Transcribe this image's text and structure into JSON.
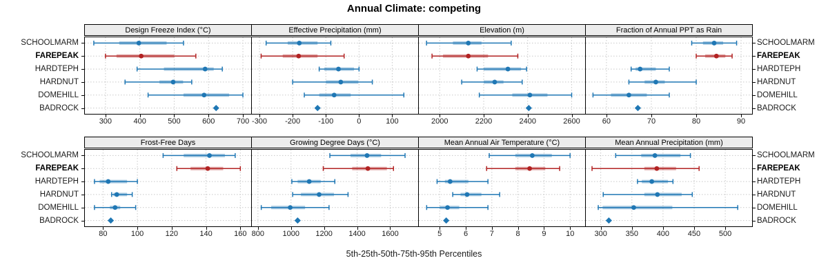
{
  "chart_data": {
    "type": "dotplot-grid",
    "title": "Annual Climate: competing",
    "xlabel": "5th-25th-50th-75th-95th Percentiles",
    "percentiles": [
      5,
      25,
      50,
      75,
      95
    ],
    "stations": [
      "SCHOOLMARM",
      "FAREPEAK",
      "HARDTEPH",
      "HARDNUT",
      "DOMEHILL",
      "BADROCK"
    ],
    "highlight_station": "FAREPEAK",
    "legend_position": "none",
    "grid": {
      "rows": 2,
      "cols": 4,
      "gridlines": "dotted"
    },
    "colors": {
      "series": "#1f77b4",
      "highlight": "#b22222",
      "band_opacity": 0.38,
      "gridline": "#c8c8c8",
      "strip_bg": "#ececec",
      "panel_border": "#000000"
    },
    "panels": [
      {
        "title": "Design Freeze Index (°C)",
        "row": 0,
        "col": 0,
        "xlim": [
          240,
          722
        ],
        "ticks": [
          300,
          400,
          500,
          600,
          700
        ],
        "values": {
          "SCHOOLMARM": [
            266,
            340,
            397,
            478,
            527
          ],
          "FAREPEAK": [
            300,
            332,
            404,
            500,
            563
          ],
          "HARDTEPH": [
            392,
            470,
            590,
            615,
            640
          ],
          "HARDNUT": [
            357,
            457,
            497,
            526,
            551
          ],
          "DOMEHILL": [
            424,
            527,
            587,
            660,
            700
          ],
          "BADROCK": [
            622
          ]
        }
      },
      {
        "title": "Effective Precipitation (mm)",
        "row": 0,
        "col": 1,
        "xlim": [
          -323,
          176
        ],
        "ticks": [
          -300,
          -200,
          -100,
          0,
          100
        ],
        "values": {
          "SCHOOLMARM": [
            -280,
            -215,
            -180,
            -125,
            -85
          ],
          "FAREPEAK": [
            -295,
            -230,
            -182,
            -125,
            -45
          ],
          "HARDTEPH": [
            -120,
            -105,
            -62,
            -15,
            0
          ],
          "HARDNUT": [
            -200,
            -100,
            -55,
            -2,
            40
          ],
          "DOMEHILL": [
            -165,
            -120,
            -75,
            -25,
            135
          ],
          "BADROCK": [
            -125
          ]
        }
      },
      {
        "title": "Elevation (m)",
        "row": 0,
        "col": 2,
        "xlim": [
          1905,
          2658
        ],
        "ticks": [
          2000,
          2200,
          2400,
          2600
        ],
        "values": {
          "SCHOOLMARM": [
            1940,
            2060,
            2130,
            2190,
            2325
          ],
          "FAREPEAK": [
            1965,
            2015,
            2130,
            2220,
            2355
          ],
          "HARDTEPH": [
            2170,
            2200,
            2310,
            2370,
            2395
          ],
          "HARDNUT": [
            2100,
            2200,
            2250,
            2290,
            2375
          ],
          "DOMEHILL": [
            2180,
            2330,
            2410,
            2490,
            2600
          ],
          "BADROCK": [
            2405
          ]
        }
      },
      {
        "title": "Fraction of Annual PPT as Rain",
        "row": 0,
        "col": 3,
        "xlim": [
          55.4,
          92.3
        ],
        "ticks": [
          60,
          70,
          80,
          90
        ],
        "values": {
          "SCHOOLMARM": [
            79,
            81.5,
            84,
            86,
            89
          ],
          "FAREPEAK": [
            80,
            82,
            84.5,
            86.5,
            88
          ],
          "HARDTEPH": [
            65.5,
            66.5,
            67.5,
            71,
            74
          ],
          "HARDNUT": [
            65,
            68.5,
            71,
            73,
            80
          ],
          "DOMEHILL": [
            57,
            61,
            65,
            69,
            74
          ],
          "BADROCK": [
            67
          ]
        }
      },
      {
        "title": "Frost-Free Days",
        "row": 1,
        "col": 0,
        "xlim": [
          69.4,
          165.9
        ],
        "ticks": [
          80,
          100,
          120,
          140,
          160
        ],
        "values": {
          "SCHOOLMARM": [
            115,
            127,
            142,
            151,
            157
          ],
          "FAREPEAK": [
            123,
            131,
            141,
            150,
            160
          ],
          "HARDTEPH": [
            75,
            78,
            83,
            94,
            100
          ],
          "HARDNUT": [
            85,
            86,
            88,
            94,
            97
          ],
          "DOMEHILL": [
            75,
            84,
            87,
            90,
            99
          ],
          "BADROCK": [
            84.5
          ]
        }
      },
      {
        "title": "Growing Degree Days (°C)",
        "row": 1,
        "col": 1,
        "xlim": [
          763,
          1765
        ],
        "ticks": [
          800,
          1000,
          1200,
          1400,
          1600
        ],
        "values": {
          "SCHOOLMARM": [
            1235,
            1360,
            1460,
            1545,
            1690
          ],
          "FAREPEAK": [
            1195,
            1370,
            1465,
            1580,
            1620
          ],
          "HARDTEPH": [
            1005,
            1040,
            1110,
            1180,
            1265
          ],
          "HARDNUT": [
            1010,
            1060,
            1170,
            1260,
            1345
          ],
          "DOMEHILL": [
            820,
            880,
            995,
            1085,
            1230
          ],
          "BADROCK": [
            1040
          ]
        }
      },
      {
        "title": "Mean Annual Air Temperature (°C)",
        "row": 1,
        "col": 2,
        "xlim": [
          4.2,
          10.55
        ],
        "ticks": [
          5,
          6,
          7,
          8,
          9,
          10
        ],
        "values": {
          "SCHOOLMARM": [
            6.9,
            7.9,
            8.55,
            9.3,
            10.0
          ],
          "FAREPEAK": [
            6.8,
            7.9,
            8.45,
            9.05,
            9.6
          ],
          "HARDTEPH": [
            4.9,
            5.2,
            5.4,
            6.1,
            6.85
          ],
          "HARDNUT": [
            5.5,
            5.8,
            6.05,
            6.6,
            7.3
          ],
          "DOMEHILL": [
            4.5,
            5.0,
            5.3,
            5.75,
            6.85
          ],
          "BADROCK": [
            5.25
          ]
        }
      },
      {
        "title": "Mean Annual Precipitation (mm)",
        "row": 1,
        "col": 3,
        "xlim": [
          276,
          542
        ],
        "ticks": [
          300,
          350,
          400,
          450,
          500
        ],
        "values": {
          "SCHOOLMARM": [
            324,
            365,
            387,
            428,
            444
          ],
          "FAREPEAK": [
            286,
            370,
            390,
            421,
            458
          ],
          "HARDTEPH": [
            359,
            366,
            382,
            408,
            416
          ],
          "HARDNUT": [
            304,
            370,
            391,
            430,
            447
          ],
          "DOMEHILL": [
            296,
            303,
            353,
            415,
            520
          ],
          "BADROCK": [
            313
          ]
        }
      }
    ]
  }
}
